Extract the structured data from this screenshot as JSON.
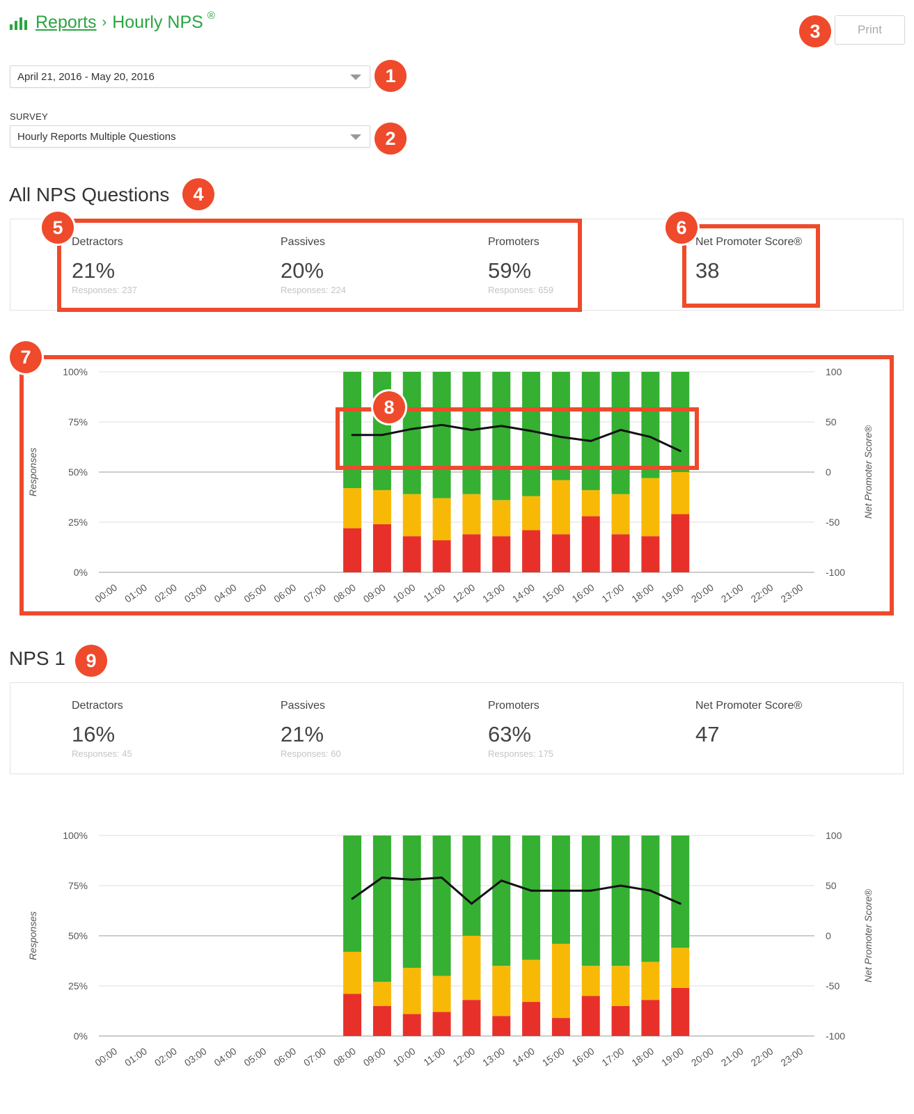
{
  "header": {
    "breadcrumb_root": "Reports",
    "breadcrumb_sep": "›",
    "page_title": "Hourly NPS",
    "registered_mark": "®",
    "print_label": "Print",
    "brand_color": "#2aa541"
  },
  "filters": {
    "date_range": "April 21, 2016 - May 20, 2016",
    "survey_label": "SURVEY",
    "survey_value": "Hourly Reports Multiple Questions"
  },
  "callouts": [
    "1",
    "2",
    "3",
    "4",
    "5",
    "6",
    "7",
    "8",
    "9"
  ],
  "sections": [
    {
      "title": "All NPS Questions",
      "detractors": {
        "label": "Detractors",
        "pct": "21%",
        "responses": "Responses: 237"
      },
      "passives": {
        "label": "Passives",
        "pct": "20%",
        "responses": "Responses: 224"
      },
      "promoters": {
        "label": "Promoters",
        "pct": "59%",
        "responses": "Responses: 659"
      },
      "nps": {
        "label": "Net Promoter Score®",
        "value": "38"
      }
    },
    {
      "title": "NPS 1",
      "detractors": {
        "label": "Detractors",
        "pct": "16%",
        "responses": "Responses: 45"
      },
      "passives": {
        "label": "Passives",
        "pct": "21%",
        "responses": "Responses: 60"
      },
      "promoters": {
        "label": "Promoters",
        "pct": "63%",
        "responses": "Responses: 175"
      },
      "nps": {
        "label": "Net Promoter Score®",
        "value": "47"
      }
    }
  ],
  "chart_data": [
    {
      "type": "bar",
      "stacked": true,
      "title": "All NPS Questions",
      "ylabel": "Responses",
      "y2label": "Net Promoter Score®",
      "categories": [
        "00:00",
        "01:00",
        "02:00",
        "03:00",
        "04:00",
        "05:00",
        "06:00",
        "07:00",
        "08:00",
        "09:00",
        "10:00",
        "11:00",
        "12:00",
        "13:00",
        "14:00",
        "15:00",
        "16:00",
        "17:00",
        "18:00",
        "19:00",
        "20:00",
        "21:00",
        "22:00",
        "23:00"
      ],
      "yticks": [
        "0%",
        "25%",
        "50%",
        "75%",
        "100%"
      ],
      "y2ticks": [
        "-100",
        "-50",
        "0",
        "50",
        "100"
      ],
      "ylim": [
        0,
        100
      ],
      "y2lim": [
        -100,
        100
      ],
      "series": [
        {
          "name": "Detractors",
          "color": "#e8302a",
          "values": [
            null,
            null,
            null,
            null,
            null,
            null,
            null,
            null,
            22,
            24,
            18,
            16,
            19,
            18,
            21,
            19,
            28,
            19,
            18,
            29,
            null,
            null,
            null,
            null
          ]
        },
        {
          "name": "Passives",
          "color": "#f8b906",
          "values": [
            null,
            null,
            null,
            null,
            null,
            null,
            null,
            null,
            20,
            17,
            21,
            21,
            20,
            18,
            17,
            27,
            13,
            20,
            29,
            21,
            null,
            null,
            null,
            null
          ]
        },
        {
          "name": "Promoters",
          "color": "#35b032",
          "values": [
            null,
            null,
            null,
            null,
            null,
            null,
            null,
            null,
            58,
            59,
            61,
            63,
            61,
            64,
            62,
            54,
            59,
            61,
            53,
            50,
            null,
            null,
            null,
            null
          ]
        },
        {
          "name": "Net Promoter Score",
          "type": "line",
          "axis": "right",
          "color": "#111111",
          "values": [
            null,
            null,
            null,
            null,
            null,
            null,
            null,
            null,
            37,
            37,
            43,
            47,
            42,
            46,
            41,
            35,
            31,
            42,
            35,
            21,
            null,
            null,
            null,
            null
          ]
        }
      ]
    },
    {
      "type": "bar",
      "stacked": true,
      "title": "NPS 1",
      "ylabel": "Responses",
      "y2label": "Net Promoter Score®",
      "categories": [
        "00:00",
        "01:00",
        "02:00",
        "03:00",
        "04:00",
        "05:00",
        "06:00",
        "07:00",
        "08:00",
        "09:00",
        "10:00",
        "11:00",
        "12:00",
        "13:00",
        "14:00",
        "15:00",
        "16:00",
        "17:00",
        "18:00",
        "19:00",
        "20:00",
        "21:00",
        "22:00",
        "23:00"
      ],
      "yticks": [
        "0%",
        "25%",
        "50%",
        "75%",
        "100%"
      ],
      "y2ticks": [
        "-100",
        "-50",
        "0",
        "50",
        "100"
      ],
      "ylim": [
        0,
        100
      ],
      "y2lim": [
        -100,
        100
      ],
      "series": [
        {
          "name": "Detractors",
          "color": "#e8302a",
          "values": [
            null,
            null,
            null,
            null,
            null,
            null,
            null,
            null,
            21,
            15,
            11,
            12,
            18,
            10,
            17,
            9,
            20,
            15,
            18,
            24,
            null,
            null,
            null,
            null
          ]
        },
        {
          "name": "Passives",
          "color": "#f8b906",
          "values": [
            null,
            null,
            null,
            null,
            null,
            null,
            null,
            null,
            21,
            12,
            23,
            18,
            32,
            25,
            21,
            37,
            15,
            20,
            19,
            20,
            null,
            null,
            null,
            null
          ]
        },
        {
          "name": "Promoters",
          "color": "#35b032",
          "values": [
            null,
            null,
            null,
            null,
            null,
            null,
            null,
            null,
            58,
            73,
            66,
            70,
            50,
            65,
            62,
            54,
            65,
            65,
            63,
            56,
            null,
            null,
            null,
            null
          ]
        },
        {
          "name": "Net Promoter Score",
          "type": "line",
          "axis": "right",
          "color": "#111111",
          "values": [
            null,
            null,
            null,
            null,
            null,
            null,
            null,
            null,
            37,
            58,
            56,
            58,
            32,
            55,
            45,
            45,
            45,
            50,
            45,
            32,
            null,
            null,
            null,
            null
          ]
        }
      ]
    }
  ]
}
